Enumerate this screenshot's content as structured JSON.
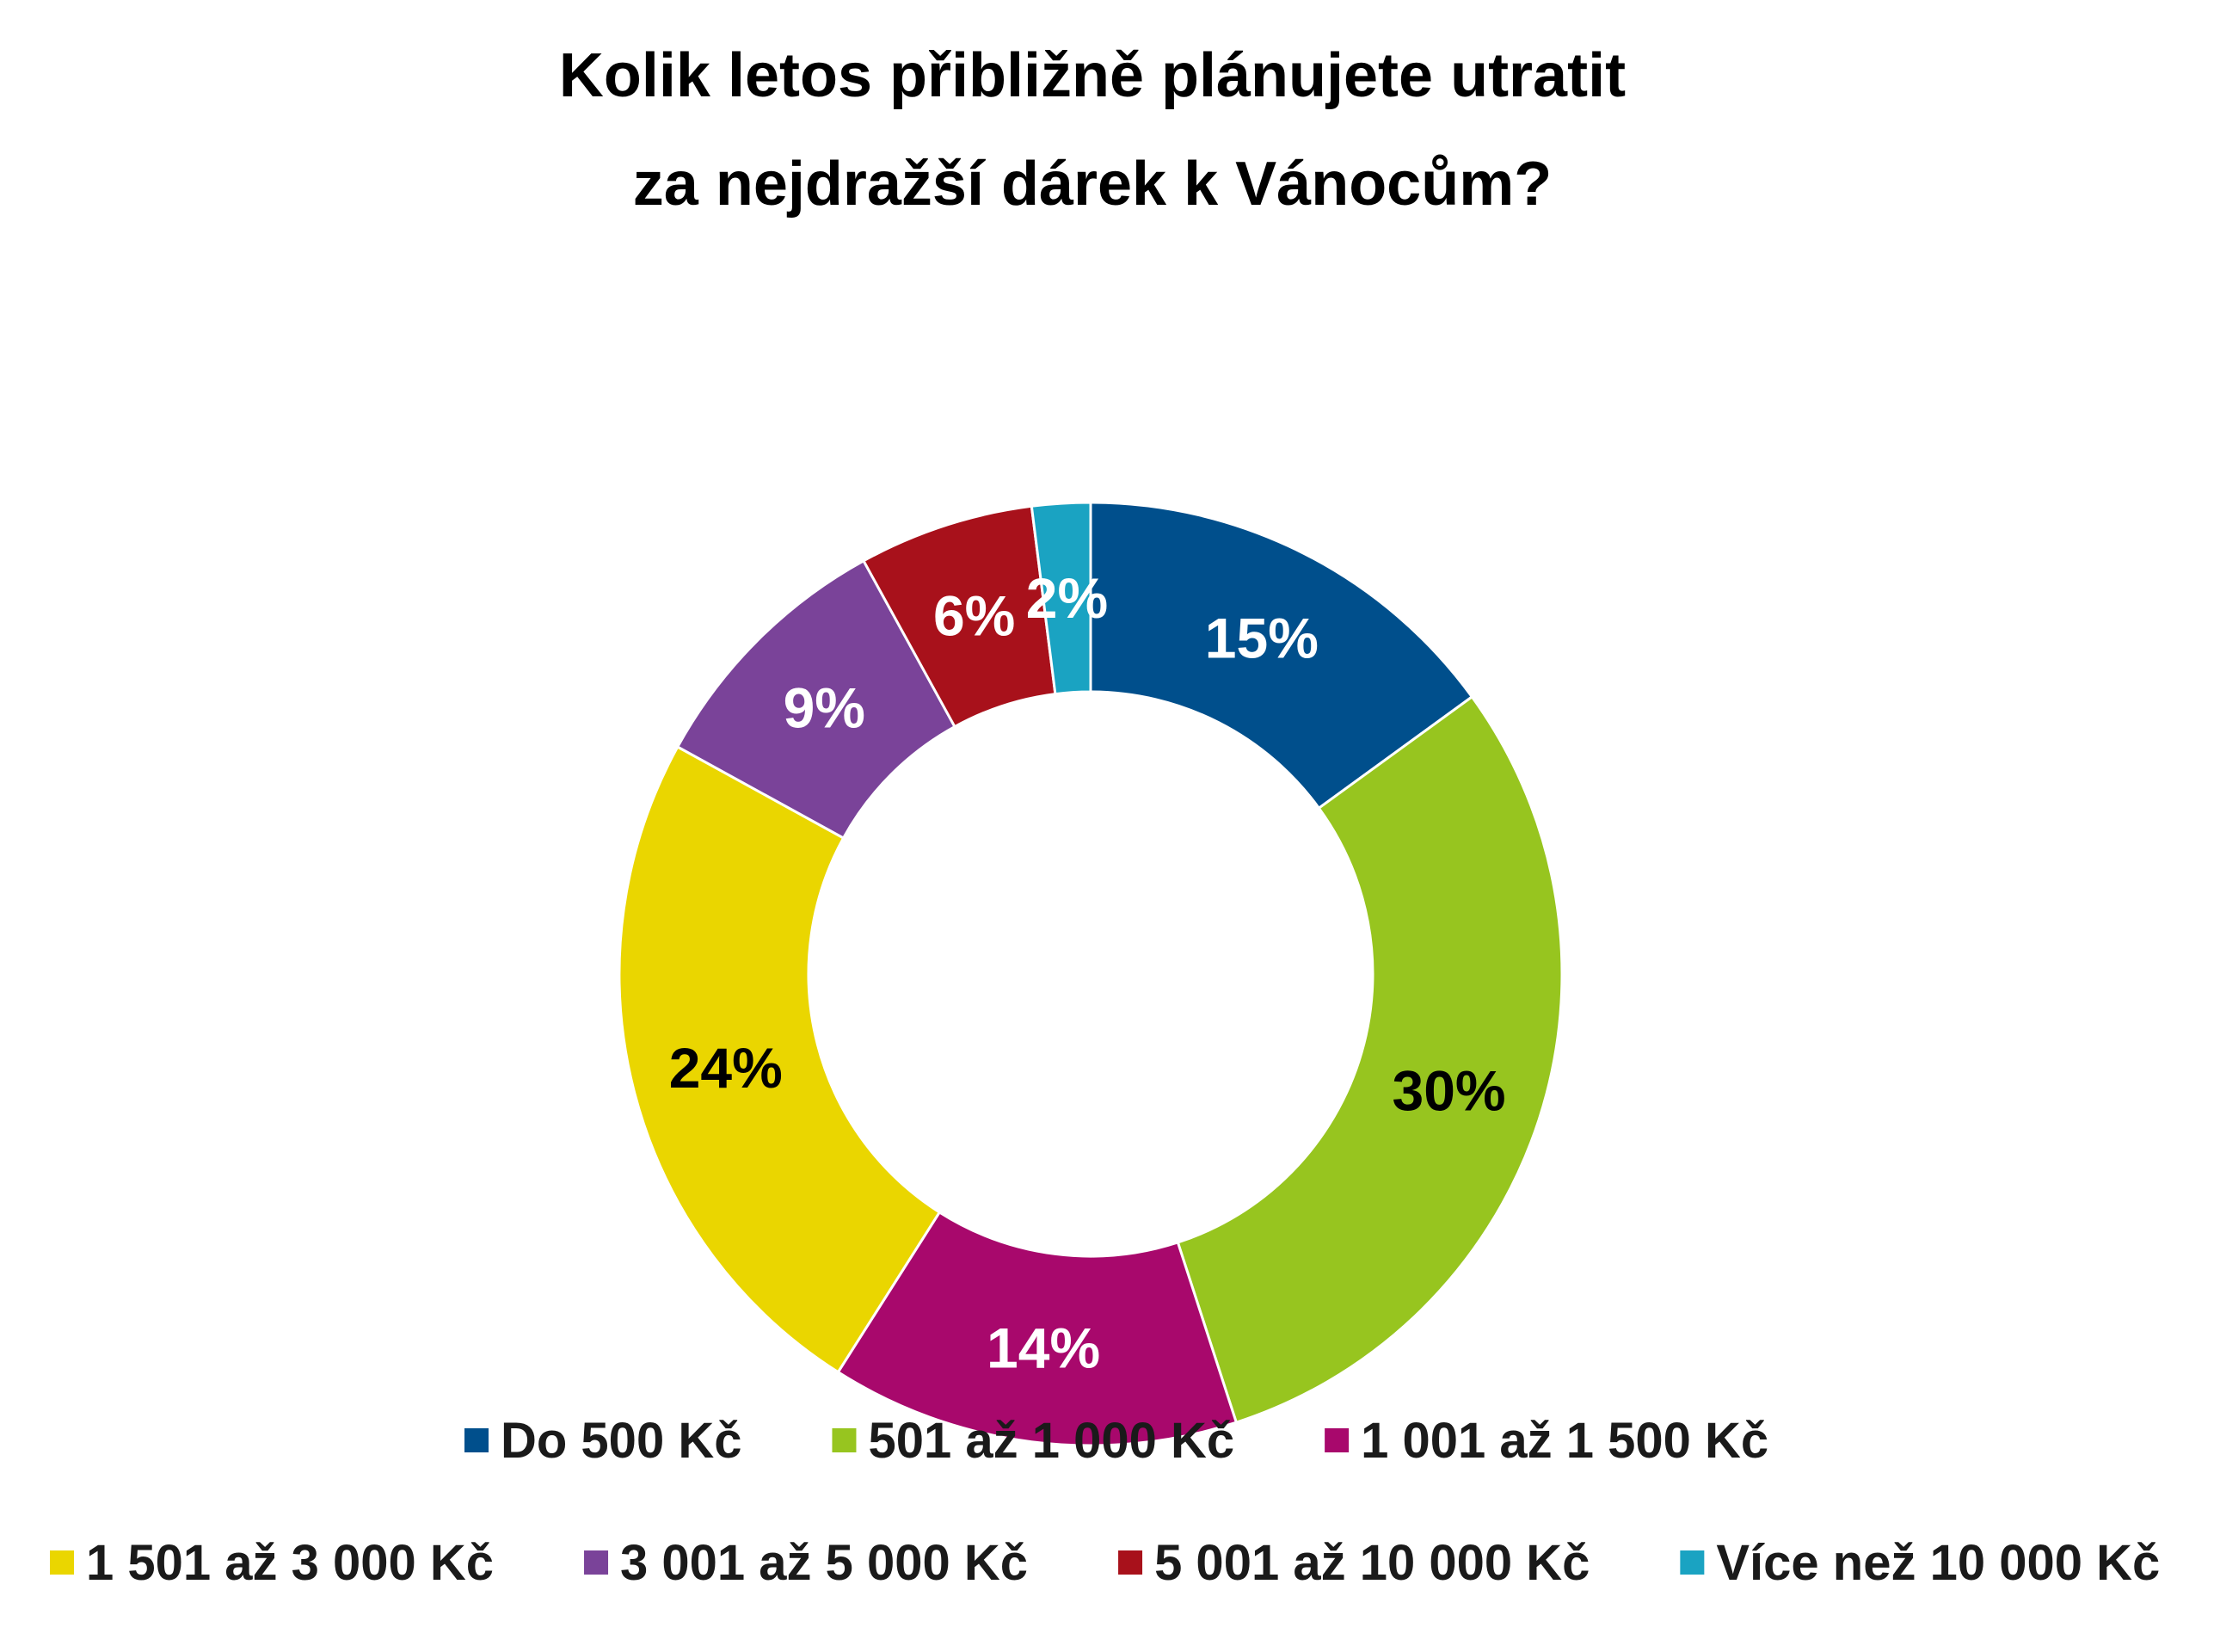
{
  "chart_data": {
    "type": "pie",
    "donut": true,
    "title": "Kolik letos přibližně plánujete utratit za nejdražší dárek k Vánocům?",
    "title_lines": [
      "Kolik letos přibližně plánujete utratit",
      "za nejdražší dárek k Vánocům?"
    ],
    "slices": [
      {
        "label": "Do 500 Kč",
        "value": 15,
        "display": "15%",
        "color": "#004f8c",
        "label_color": "#ffffff"
      },
      {
        "label": "501 až 1 000 Kč",
        "value": 30,
        "display": "30%",
        "color": "#97c51f",
        "label_color": "#000000"
      },
      {
        "label": "1 001 až 1 500 Kč",
        "value": 14,
        "display": "14%",
        "color": "#a8086c",
        "label_color": "#ffffff"
      },
      {
        "label": "1 501 až 3 000 Kč",
        "value": 24,
        "display": "24%",
        "color": "#ead600",
        "label_color": "#000000"
      },
      {
        "label": "3 001 až 5 000 Kč",
        "value": 9,
        "display": "9%",
        "color": "#7a4399",
        "label_color": "#ffffff"
      },
      {
        "label": "5 001 až 10 000 Kč",
        "value": 6,
        "display": "6%",
        "color": "#a8111b",
        "label_color": "#ffffff"
      },
      {
        "label": "Více než 10 000 Kč",
        "value": 2,
        "display": "2%",
        "color": "#1aa3c2",
        "label_color": "#ffffff"
      }
    ],
    "legend_position": "bottom"
  }
}
